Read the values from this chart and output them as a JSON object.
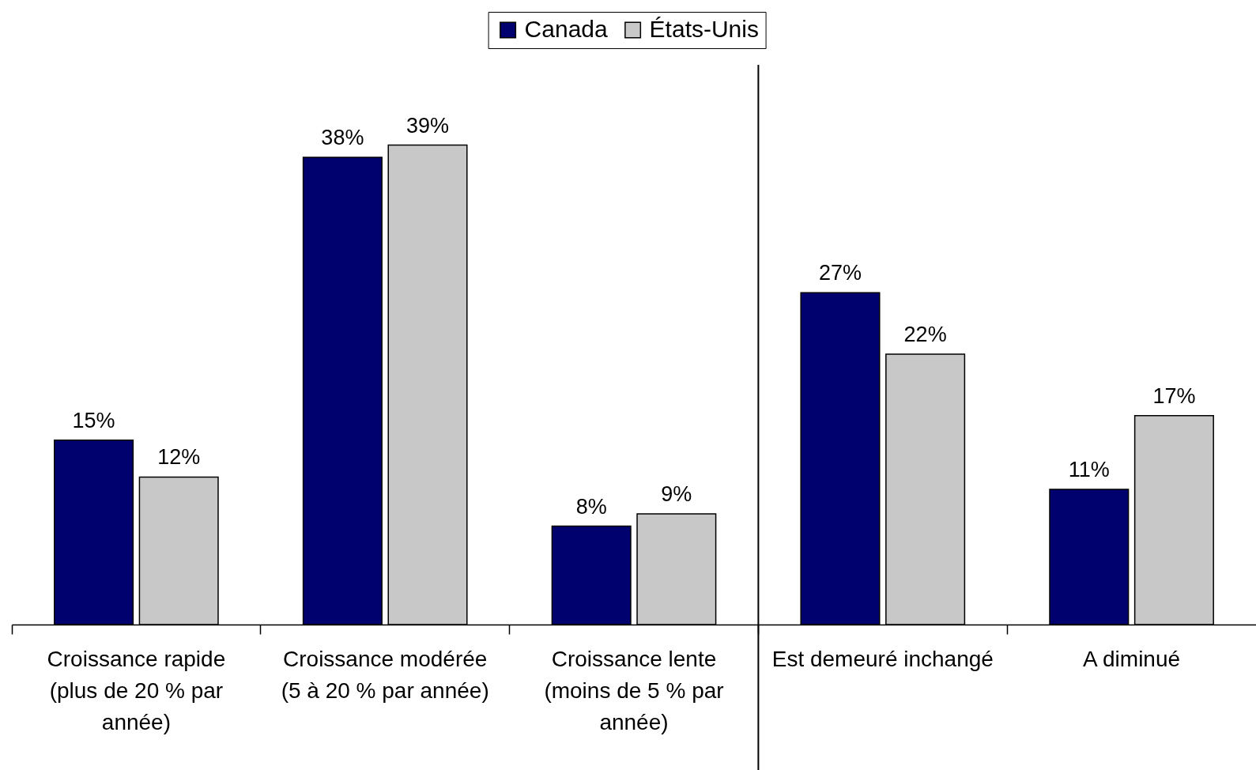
{
  "chart_data": {
    "type": "bar",
    "categories": [
      "Croissance rapide (plus de 20 % par année)",
      "Croissance modérée (5 à 20 % par année)",
      "Croissance lente (moins de 5 % par année)",
      "Est demeuré inchangé",
      "A diminué"
    ],
    "series": [
      {
        "name": "Canada",
        "color": "#00006e",
        "values": [
          15,
          38,
          8,
          27,
          11
        ],
        "value_labels": [
          "15%",
          "38%",
          "8%",
          "27%",
          "11%"
        ]
      },
      {
        "name": "États-Unis",
        "color": "#c8c8c8",
        "values": [
          12,
          39,
          9,
          22,
          17
        ],
        "value_labels": [
          "12%",
          "39%",
          "9%",
          "22%",
          "17%"
        ]
      }
    ],
    "legend": "top",
    "tick_labels": "x"
  }
}
